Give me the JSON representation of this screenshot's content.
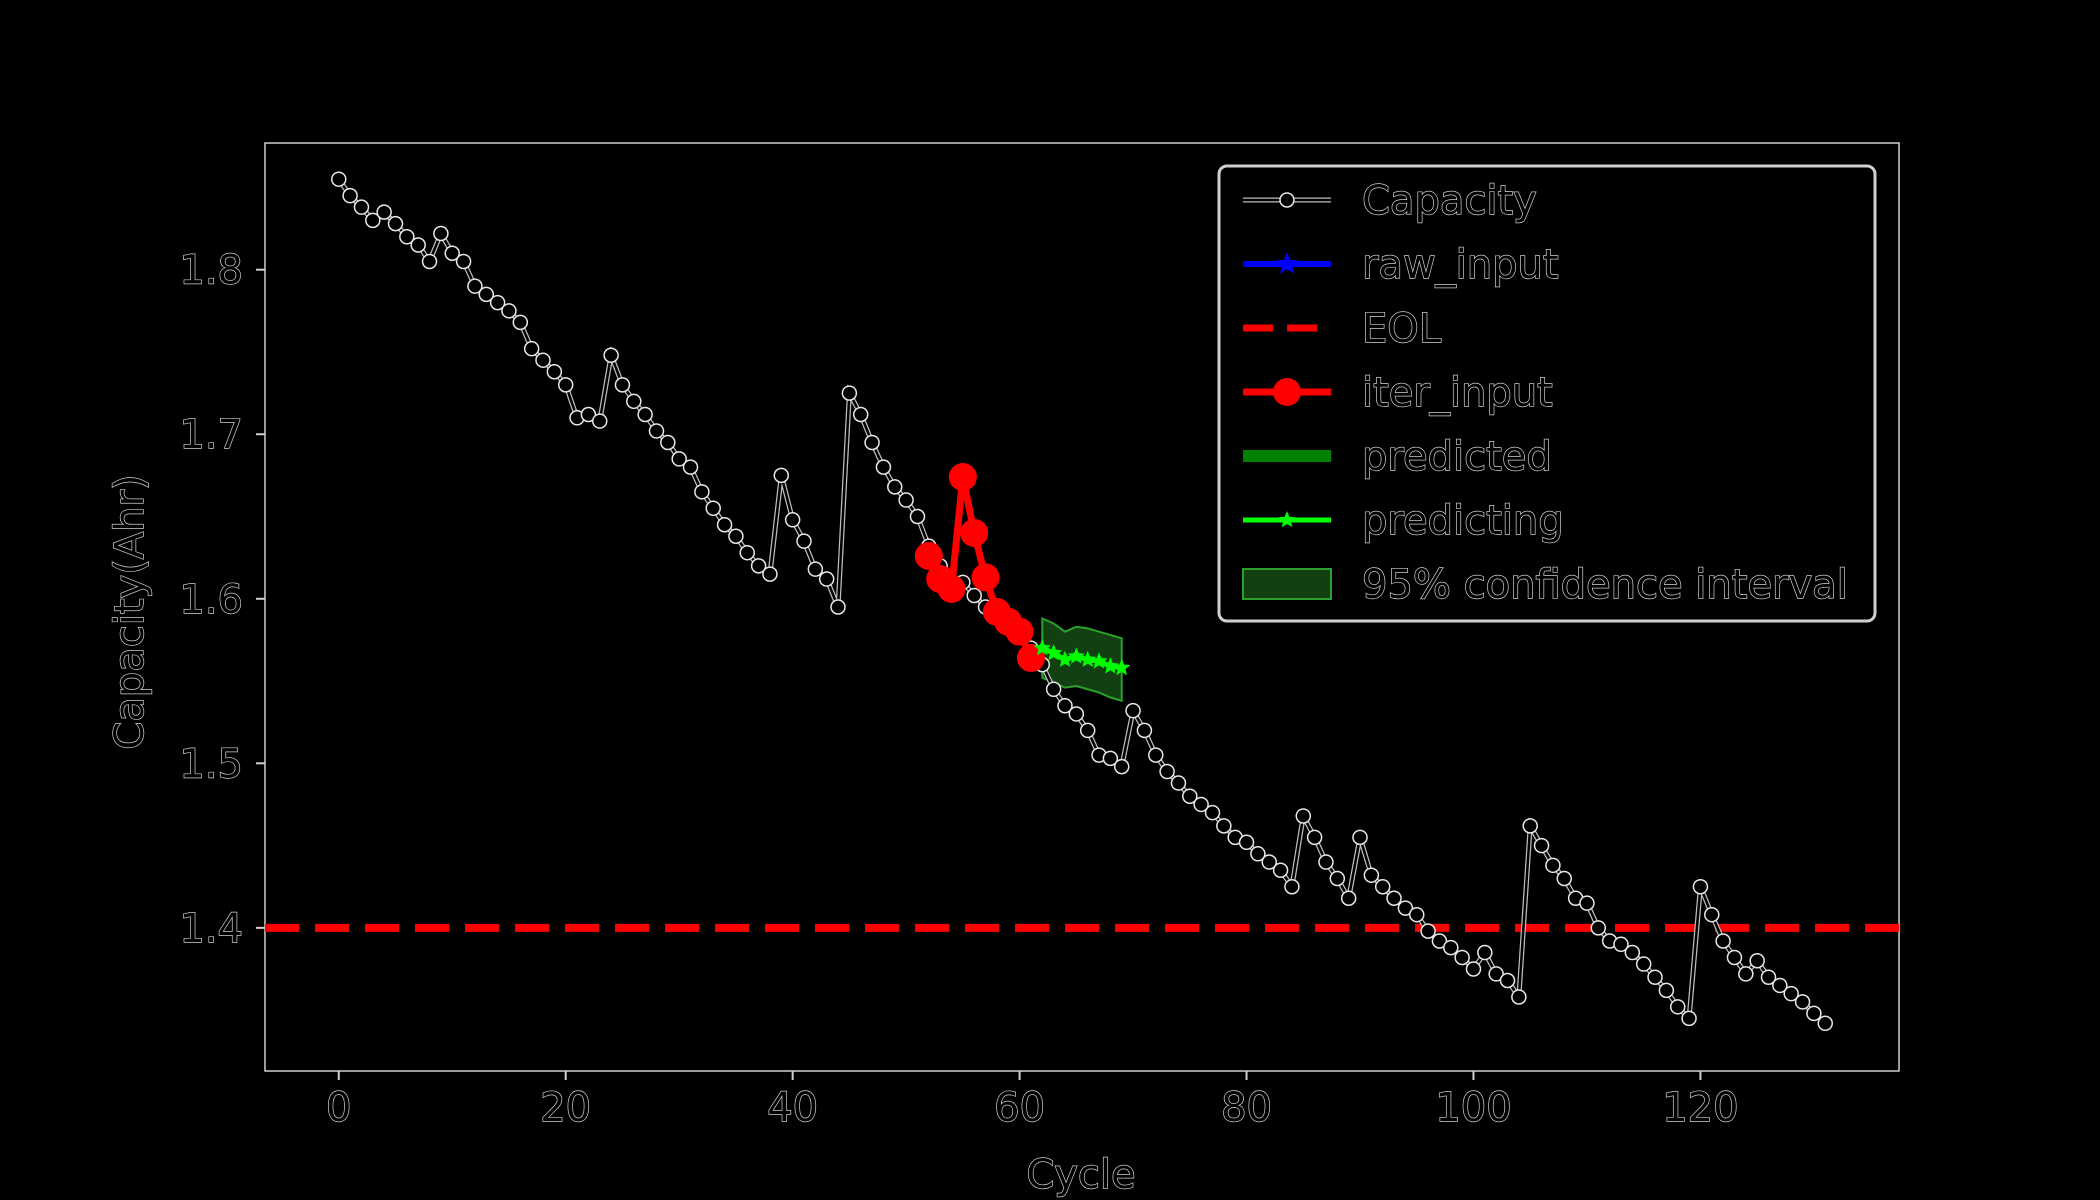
{
  "chart_data": {
    "type": "line",
    "xlabel": "Cycle",
    "ylabel": "Capacity(Ahr)",
    "xlim": [
      -6.5,
      137.5
    ],
    "ylim": [
      1.313,
      1.877
    ],
    "xticks": [
      0,
      20,
      40,
      60,
      80,
      100,
      120
    ],
    "yticks": [
      1.4,
      1.5,
      1.6,
      1.7,
      1.8
    ],
    "xtick_labels": [
      "0",
      "20",
      "40",
      "60",
      "80",
      "100",
      "120"
    ],
    "ytick_labels": [
      "1.4",
      "1.5",
      "1.6",
      "1.7",
      "1.8"
    ],
    "grid": false,
    "legend_position": "top-right",
    "legend": [
      {
        "label": "Capacity",
        "key": "capacity"
      },
      {
        "label": "raw_input",
        "key": "raw_input"
      },
      {
        "label": "EOL",
        "key": "eol"
      },
      {
        "label": "iter_input",
        "key": "iter_input"
      },
      {
        "label": "predicted",
        "key": "predicted"
      },
      {
        "label": "predicting",
        "key": "predicting"
      },
      {
        "label": "95% confidence interval",
        "key": "ci"
      }
    ],
    "colors": {
      "capacity": "#ffffff",
      "raw_input": "#0000ff",
      "eol": "#ff0000",
      "iter_input": "#ff0000",
      "predicted": "#008000",
      "predicting": "#00ff00",
      "ci": "#2ca02c"
    },
    "series": {
      "capacity": {
        "x": [
          0,
          1,
          2,
          3,
          4,
          5,
          6,
          7,
          8,
          9,
          10,
          11,
          12,
          13,
          14,
          15,
          16,
          17,
          18,
          19,
          20,
          21,
          22,
          23,
          24,
          25,
          26,
          27,
          28,
          29,
          30,
          31,
          32,
          33,
          34,
          35,
          36,
          37,
          38,
          39,
          40,
          41,
          42,
          43,
          44,
          45,
          46,
          47,
          48,
          49,
          50,
          51,
          52,
          53,
          54,
          55,
          56,
          57,
          58,
          59,
          60,
          61,
          62,
          63,
          64,
          65,
          66,
          67,
          68,
          69,
          70,
          71,
          72,
          73,
          74,
          75,
          76,
          77,
          78,
          79,
          80,
          81,
          82,
          83,
          84,
          85,
          86,
          87,
          88,
          89,
          90,
          91,
          92,
          93,
          94,
          95,
          96,
          97,
          98,
          99,
          100,
          101,
          102,
          103,
          104,
          105,
          106,
          107,
          108,
          109,
          110,
          111,
          112,
          113,
          114,
          115,
          116,
          117,
          118,
          119,
          120,
          121,
          122,
          123,
          124,
          125,
          126,
          127,
          128,
          129,
          130,
          131
        ],
        "y": [
          1.855,
          1.845,
          1.838,
          1.83,
          1.835,
          1.828,
          1.82,
          1.815,
          1.805,
          1.822,
          1.81,
          1.805,
          1.79,
          1.785,
          1.78,
          1.775,
          1.768,
          1.752,
          1.745,
          1.738,
          1.73,
          1.71,
          1.712,
          1.708,
          1.748,
          1.73,
          1.72,
          1.712,
          1.702,
          1.695,
          1.685,
          1.68,
          1.665,
          1.655,
          1.645,
          1.638,
          1.628,
          1.62,
          1.615,
          1.675,
          1.648,
          1.635,
          1.618,
          1.612,
          1.595,
          1.725,
          1.712,
          1.695,
          1.68,
          1.668,
          1.66,
          1.65,
          1.632,
          1.62,
          1.605,
          1.61,
          1.602,
          1.595,
          1.59,
          1.585,
          1.578,
          1.57,
          1.56,
          1.545,
          1.535,
          1.53,
          1.52,
          1.505,
          1.503,
          1.498,
          1.532,
          1.52,
          1.505,
          1.495,
          1.488,
          1.48,
          1.475,
          1.47,
          1.462,
          1.455,
          1.452,
          1.445,
          1.44,
          1.435,
          1.425,
          1.468,
          1.455,
          1.44,
          1.43,
          1.418,
          1.455,
          1.432,
          1.425,
          1.418,
          1.412,
          1.408,
          1.398,
          1.392,
          1.388,
          1.382,
          1.375,
          1.385,
          1.372,
          1.368,
          1.358,
          1.462,
          1.45,
          1.438,
          1.43,
          1.418,
          1.415,
          1.4,
          1.392,
          1.39,
          1.385,
          1.378,
          1.37,
          1.362,
          1.352,
          1.345,
          1.425,
          1.408,
          1.392,
          1.382,
          1.372,
          1.38,
          1.37,
          1.365,
          1.36,
          1.355,
          1.348,
          1.342
        ]
      },
      "iter_input": {
        "x": [
          52,
          53,
          54,
          55,
          56,
          57,
          58,
          59,
          60,
          61
        ],
        "y": [
          1.626,
          1.612,
          1.606,
          1.674,
          1.64,
          1.613,
          1.592,
          1.586,
          1.58,
          1.564
        ]
      },
      "predicting": {
        "x": [
          62,
          63,
          64,
          65,
          66,
          67,
          68,
          69
        ],
        "y": [
          1.57,
          1.567,
          1.563,
          1.565,
          1.563,
          1.562,
          1.559,
          1.558
        ]
      },
      "ci": {
        "x": [
          62,
          63,
          64,
          65,
          66,
          67,
          68,
          69
        ],
        "upper": [
          1.588,
          1.585,
          1.58,
          1.583,
          1.582,
          1.58,
          1.578,
          1.576
        ],
        "lower": [
          1.552,
          1.549,
          1.546,
          1.547,
          1.545,
          1.543,
          1.54,
          1.538
        ]
      },
      "eol": {
        "y": 1.4
      }
    }
  }
}
